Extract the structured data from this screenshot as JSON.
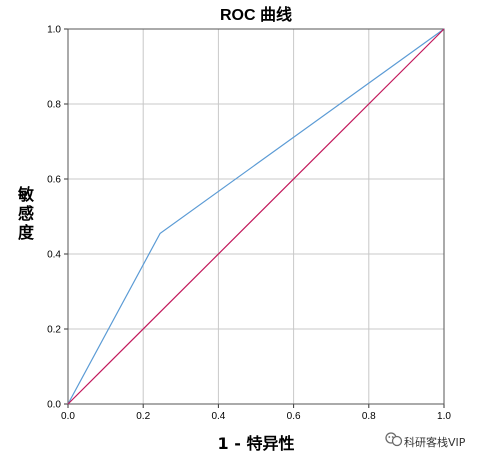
{
  "chart_data": {
    "type": "line",
    "title": "ROC 曲线",
    "xlabel": "1 - 特异性",
    "ylabel": "敏感度",
    "xlim": [
      0.0,
      1.0
    ],
    "ylim": [
      0.0,
      1.0
    ],
    "x_ticks": [
      "0.0",
      "0.2",
      "0.4",
      "0.6",
      "0.8",
      "1.0"
    ],
    "y_ticks": [
      "0.0",
      "0.2",
      "0.4",
      "0.6",
      "0.8",
      "1.0"
    ],
    "grid": true,
    "series": [
      {
        "x": [
          0.0,
          0.245,
          1.0
        ],
        "y": [
          0.0,
          0.455,
          1.0
        ],
        "color": "#5b9bd5"
      },
      {
        "x": [
          0.0,
          1.0
        ],
        "y": [
          0.0,
          1.0
        ],
        "color": "#c2185b"
      }
    ]
  },
  "watermark": {
    "text": "科研客栈VIP",
    "icon": "wechat-logo-icon"
  }
}
